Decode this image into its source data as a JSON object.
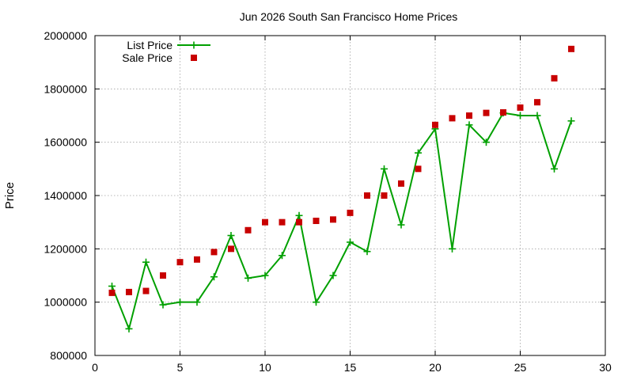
{
  "chart_data": {
    "type": "line",
    "title": "Jun 2026 South San Francisco Home Prices",
    "xlabel": "",
    "ylabel": "Price",
    "xlim": [
      0,
      30
    ],
    "ylim": [
      800000,
      2000000
    ],
    "xticks": [
      0,
      5,
      10,
      15,
      20,
      25,
      30
    ],
    "yticks": [
      800000,
      1000000,
      1200000,
      1400000,
      1600000,
      1800000,
      2000000
    ],
    "grid": true,
    "legend_position": "top-left",
    "series": [
      {
        "name": "List Price",
        "style": "linespoints",
        "marker": "plus",
        "color": "#00a000",
        "x": [
          1,
          2,
          3,
          4,
          5,
          6,
          7,
          8,
          9,
          10,
          11,
          12,
          13,
          14,
          15,
          16,
          17,
          18,
          19,
          20,
          21,
          22,
          23,
          24,
          25,
          26,
          27,
          28
        ],
        "y": [
          1060000,
          900000,
          1150000,
          990000,
          1000000,
          1000000,
          1095000,
          1250000,
          1090000,
          1100000,
          1175000,
          1325000,
          1000000,
          1100000,
          1225000,
          1190000,
          1500000,
          1290000,
          1560000,
          1650000,
          1200000,
          1665000,
          1600000,
          1710000,
          1700000,
          1700000,
          1500000,
          1680000
        ]
      },
      {
        "name": "Sale Price",
        "style": "points",
        "marker": "square",
        "color": "#c80000",
        "x": [
          1,
          2,
          3,
          4,
          5,
          6,
          7,
          8,
          9,
          10,
          11,
          12,
          13,
          14,
          15,
          16,
          17,
          18,
          19,
          20,
          21,
          22,
          23,
          24,
          25,
          26,
          27,
          28
        ],
        "y": [
          1035000,
          1038000,
          1042000,
          1100000,
          1150000,
          1160000,
          1188000,
          1200000,
          1270000,
          1300000,
          1300000,
          1300000,
          1305000,
          1310000,
          1335000,
          1400000,
          1400000,
          1445000,
          1500000,
          1665000,
          1690000,
          1700000,
          1710000,
          1712000,
          1730000,
          1750000,
          1840000,
          1950000
        ]
      }
    ]
  }
}
